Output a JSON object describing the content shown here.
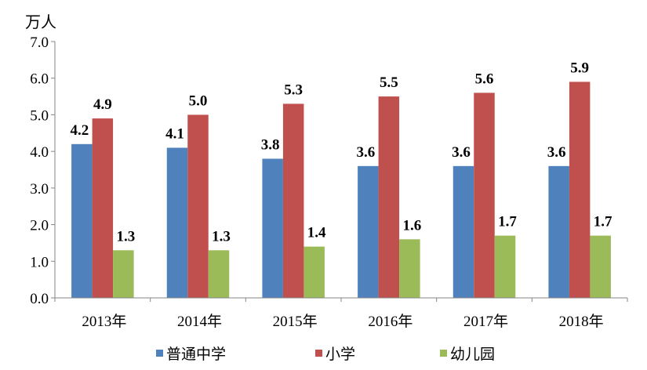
{
  "chart_data": {
    "type": "bar",
    "ylabel": "万人",
    "ylim": [
      0,
      7
    ],
    "ytick_labels": [
      "0.0",
      "1.0",
      "2.0",
      "3.0",
      "4.0",
      "5.0",
      "6.0",
      "7.0"
    ],
    "categories": [
      "2013年",
      "2014年",
      "2015年",
      "2016年",
      "2017年",
      "2018年"
    ],
    "series": [
      {
        "name": "普通中学",
        "color": "#4F81BD",
        "values": [
          4.2,
          4.1,
          3.8,
          3.6,
          3.6,
          3.6
        ]
      },
      {
        "name": "小学",
        "color": "#C0504D",
        "values": [
          4.9,
          5.0,
          5.3,
          5.5,
          5.6,
          5.9
        ]
      },
      {
        "name": "幼儿园",
        "color": "#9BBB59",
        "values": [
          1.3,
          1.3,
          1.4,
          1.6,
          1.7,
          1.7
        ]
      }
    ],
    "data_labels": true,
    "legend": "bottom",
    "grid": false
  }
}
